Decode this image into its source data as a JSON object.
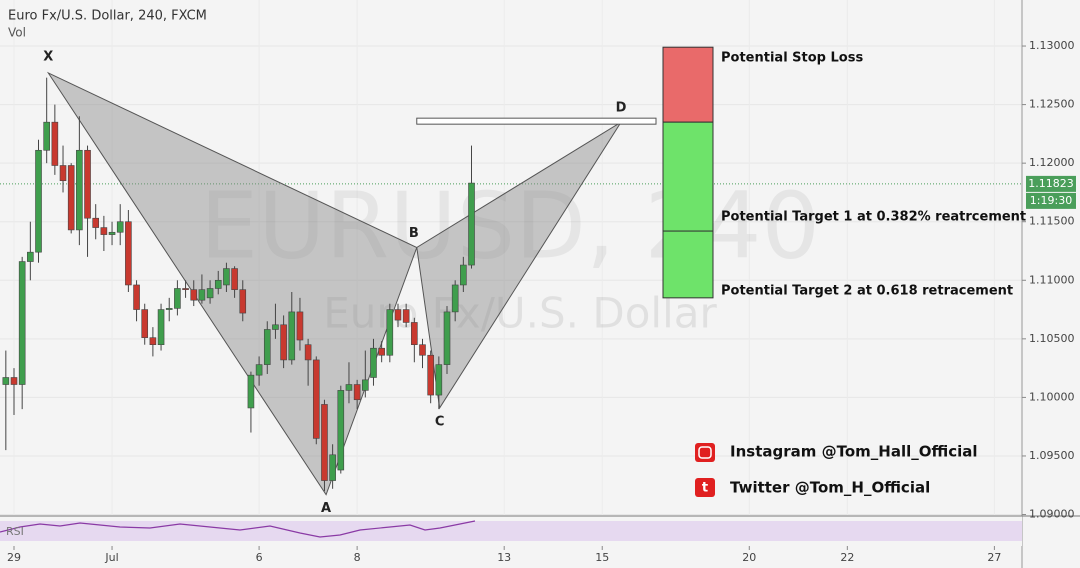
{
  "chart_data": {
    "type": "candlestick",
    "title": "Euro Fx/U.S. Dollar, 240, FXCM",
    "subtitle": "Vol",
    "watermark": "EURUSD, 240",
    "watermark_sub": "Euro Fx/U.S. Dollar",
    "up_color": "#3f9e4d",
    "down_color": "#c8392f",
    "x": [
      -1,
      0,
      1,
      2,
      3,
      4,
      5,
      6,
      7,
      8,
      9,
      10,
      11,
      12,
      13,
      14,
      15,
      16,
      17,
      18,
      19,
      20,
      21,
      22,
      23,
      24,
      25,
      26,
      27,
      28,
      29,
      30,
      31,
      32,
      33,
      34,
      35,
      36,
      37,
      38,
      39,
      40,
      41,
      42,
      43,
      44,
      45,
      46,
      47,
      48,
      49,
      50,
      51,
      52,
      53,
      54,
      55,
      56
    ],
    "open": [
      1.1011,
      1.1017,
      1.1011,
      1.1116,
      1.1124,
      1.1211,
      1.1235,
      1.1198,
      1.1198,
      1.1143,
      1.1211,
      1.1153,
      1.1145,
      1.1139,
      1.1141,
      1.115,
      1.1096,
      1.1075,
      1.1051,
      1.1045,
      1.1075,
      1.1076,
      1.1093,
      1.1092,
      1.1083,
      1.1085,
      1.1093,
      1.1096,
      1.111,
      1.1092,
      1.0991,
      1.1019,
      1.1028,
      1.1058,
      1.1062,
      1.1032,
      1.1073,
      1.1045,
      1.1032,
      1.0994,
      1.0929,
      1.0938,
      1.1006,
      1.1011,
      1.1006,
      1.1017,
      1.1042,
      1.1036,
      1.1075,
      1.1075,
      1.1064,
      1.1045,
      1.1036,
      1.1002,
      1.1028,
      1.1073,
      1.1096,
      1.1113
    ],
    "high": [
      1.104,
      1.1025,
      1.112,
      1.115,
      1.122,
      1.1273,
      1.125,
      1.1215,
      1.12,
      1.124,
      1.1215,
      1.1165,
      1.1155,
      1.115,
      1.1165,
      1.116,
      1.11,
      1.108,
      1.106,
      1.108,
      1.1085,
      1.11,
      1.11,
      1.11,
      1.1105,
      1.11,
      1.1108,
      1.1115,
      1.1112,
      1.11,
      1.1022,
      1.1035,
      1.1065,
      1.108,
      1.107,
      1.109,
      1.1085,
      1.105,
      1.1035,
      1.0998,
      1.096,
      1.101,
      1.103,
      1.1015,
      1.104,
      1.105,
      1.1048,
      1.108,
      1.108,
      1.108,
      1.1068,
      1.105,
      1.104,
      1.1035,
      1.1078,
      1.11,
      1.112,
      1.1215
    ],
    "low": [
      1.0955,
      1.0985,
      1.099,
      1.11,
      1.1115,
      1.12,
      1.119,
      1.1175,
      1.114,
      1.113,
      1.112,
      1.1135,
      1.1125,
      1.113,
      1.113,
      1.109,
      1.1065,
      1.1045,
      1.1035,
      1.104,
      1.1065,
      1.107,
      1.1085,
      1.1078,
      1.108,
      1.108,
      1.1088,
      1.109,
      1.1085,
      1.1065,
      1.097,
      1.101,
      1.102,
      1.105,
      1.1025,
      1.1028,
      1.104,
      1.101,
      1.096,
      1.092,
      1.0922,
      1.0935,
      1.0995,
      1.099,
      1.1,
      1.101,
      1.103,
      1.103,
      1.106,
      1.106,
      1.103,
      1.1025,
      1.0995,
      1.099,
      1.102,
      1.1065,
      1.109,
      1.111
    ],
    "close": [
      1.1017,
      1.1011,
      1.1116,
      1.1124,
      1.1211,
      1.1235,
      1.1198,
      1.1185,
      1.1143,
      1.1211,
      1.1153,
      1.1145,
      1.1139,
      1.1141,
      1.115,
      1.1096,
      1.1075,
      1.1051,
      1.1045,
      1.1075,
      1.1076,
      1.1093,
      1.1092,
      1.1083,
      1.1092,
      1.1093,
      1.11,
      1.111,
      1.1092,
      1.1072,
      1.1019,
      1.1028,
      1.1058,
      1.1062,
      1.1032,
      1.1073,
      1.1049,
      1.1032,
      1.0965,
      1.0929,
      1.0951,
      1.1006,
      1.1011,
      1.0998,
      1.1015,
      1.1042,
      1.1036,
      1.1075,
      1.1066,
      1.1064,
      1.1045,
      1.1036,
      1.1002,
      1.1028,
      1.1073,
      1.1096,
      1.1113,
      1.1183
    ],
    "xlim": [
      -1.714,
      123.38
    ],
    "xticks": [
      {
        "value": 0,
        "label": "29"
      },
      {
        "value": 12,
        "label": "Jul"
      },
      {
        "value": 30,
        "label": "6"
      },
      {
        "value": 42,
        "label": "8"
      },
      {
        "value": 60,
        "label": "13"
      },
      {
        "value": 72,
        "label": "15"
      },
      {
        "value": 90,
        "label": "20"
      },
      {
        "value": 102,
        "label": "22"
      },
      {
        "value": 120,
        "label": "27"
      }
    ],
    "ylim": [
      1.08996,
      1.13393
    ],
    "yticks": [
      {
        "value": 1.13,
        "label": "1.13000"
      },
      {
        "value": 1.125,
        "label": "1.12500"
      },
      {
        "value": 1.12,
        "label": "1.12000"
      },
      {
        "value": 1.115,
        "label": "1.11500"
      },
      {
        "value": 1.11,
        "label": "1.11000"
      },
      {
        "value": 1.105,
        "label": "1.10500"
      },
      {
        "value": 1.1,
        "label": "1.10000"
      },
      {
        "value": 1.095,
        "label": "1.09500"
      },
      {
        "value": 1.09,
        "label": "1.09000"
      }
    ],
    "grid": true,
    "last_price": {
      "value": 1.11823,
      "label": "1.11823"
    },
    "countdown": "1:19:30",
    "pattern": [
      {
        "label": "X",
        "x": 4.2,
        "y": 1.1277
      },
      {
        "label": "A",
        "x": 38.2,
        "y": 1.0917
      },
      {
        "label": "B",
        "x": 49.3,
        "y": 1.1128
      },
      {
        "label": "C",
        "x": 52.1,
        "y": 1.0991
      },
      {
        "label": "D",
        "x": 74.3,
        "y": 1.1235
      }
    ],
    "zones": [
      {
        "label": "Potential Stop Loss",
        "top": 1.1299,
        "bottom": 1.1235,
        "color": "#e96a6a"
      },
      {
        "label": "Potential Target 1 at 0.382% reatrcement",
        "top": 1.1235,
        "bottom": 1.1142,
        "color": "#6ee36a"
      },
      {
        "label": "Potential Target 2 at 0.618 retracement",
        "top": 1.1142,
        "bottom": 1.1085,
        "color": "#6ee36a"
      }
    ],
    "rsi_label": "RSI",
    "social": [
      "Instagram @Tom_Hall_Official",
      "Twitter @Tom_H_Official"
    ]
  }
}
